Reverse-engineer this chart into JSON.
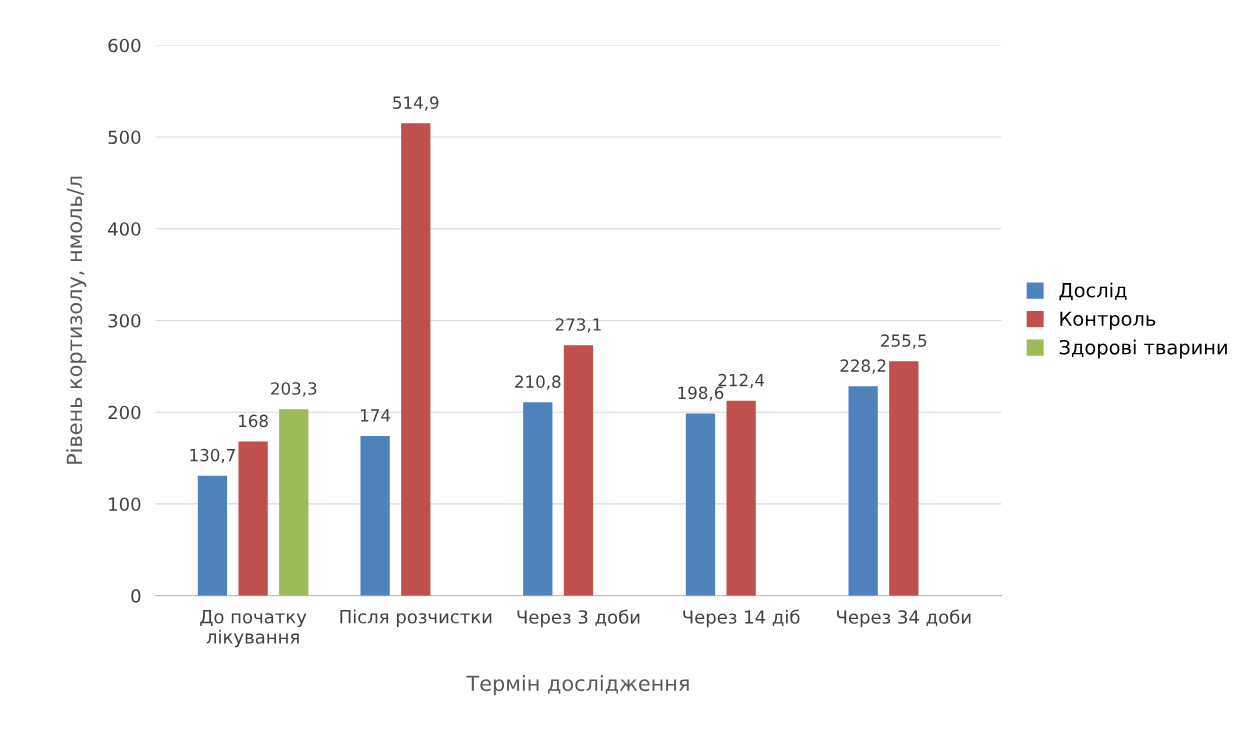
{
  "chart_data": {
    "type": "bar",
    "xlabel": "Термін дослідження",
    "ylabel": "Рівень кортизолу, нмоль/л",
    "categories": [
      "До початку\nлікування",
      "Після розчистки",
      "Через 3 доби",
      "Через 14 діб",
      "Через 34 доби"
    ],
    "series": [
      {
        "name": "Дослід",
        "color": "#4f81bd",
        "values": [
          130.7,
          174,
          210.8,
          198.6,
          228.2
        ],
        "value_labels": [
          "130,7",
          "174",
          "210,8",
          "198,6",
          "228,2"
        ]
      },
      {
        "name": "Контроль",
        "color": "#c0504d",
        "values": [
          168,
          514.9,
          273.1,
          212.4,
          255.5
        ],
        "value_labels": [
          "168",
          "514,9",
          "273,1",
          "212,4",
          "255,5"
        ]
      },
      {
        "name": "Здорові тварини",
        "color": "#9bbb59",
        "values": [
          203.3,
          null,
          null,
          null,
          null
        ],
        "value_labels": [
          "203,3",
          null,
          null,
          null,
          null
        ]
      }
    ],
    "ylim": [
      0,
      600
    ],
    "yticks": [
      0,
      100,
      200,
      300,
      400,
      500,
      600
    ],
    "grid": "y",
    "legend": "right"
  }
}
